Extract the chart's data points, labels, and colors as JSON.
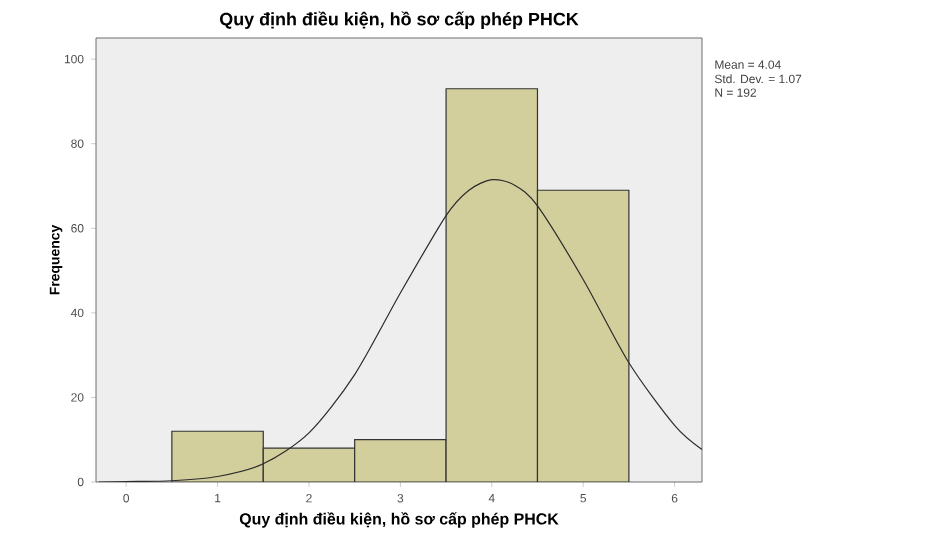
{
  "chart_data": {
    "type": "histogram",
    "title": "Quy định điều kiện, hồ sơ cấp phép PHCK",
    "xlabel": "Quy định điều kiện, hồ sơ cấp phép PHCK",
    "ylabel": "Frequency",
    "bins": [
      0.5,
      1.5,
      2.5,
      3.5,
      4.5,
      5.5
    ],
    "values": [
      12,
      8,
      10,
      93,
      69
    ],
    "color": "#d3cf9d",
    "series": [
      {
        "type": "line",
        "color": "#2b2b2b",
        "x": [
          -0.3,
          0,
          0.5,
          1,
          1.5,
          2,
          2.5,
          3,
          3.5,
          3.75,
          4,
          4.25,
          4.5,
          5,
          5.5,
          6,
          6.3
        ],
        "values": [
          0,
          0.1,
          0.3,
          1.3,
          4.3,
          11.6,
          25.4,
          44.7,
          63.0,
          69.0,
          71.5,
          70.2,
          65.3,
          47.9,
          28.2,
          13.4,
          7.7
        ]
      }
    ],
    "xlim": [
      -0.33,
      6.3
    ],
    "ylim": [
      0,
      105
    ],
    "xticks": [
      0,
      1,
      2,
      3,
      4,
      5,
      6
    ],
    "yticks": [
      0,
      20,
      40,
      60,
      80,
      100
    ],
    "annotations": [
      "Mean = 4.04",
      "Std. Dev. = 1.07",
      "N = 192"
    ]
  }
}
